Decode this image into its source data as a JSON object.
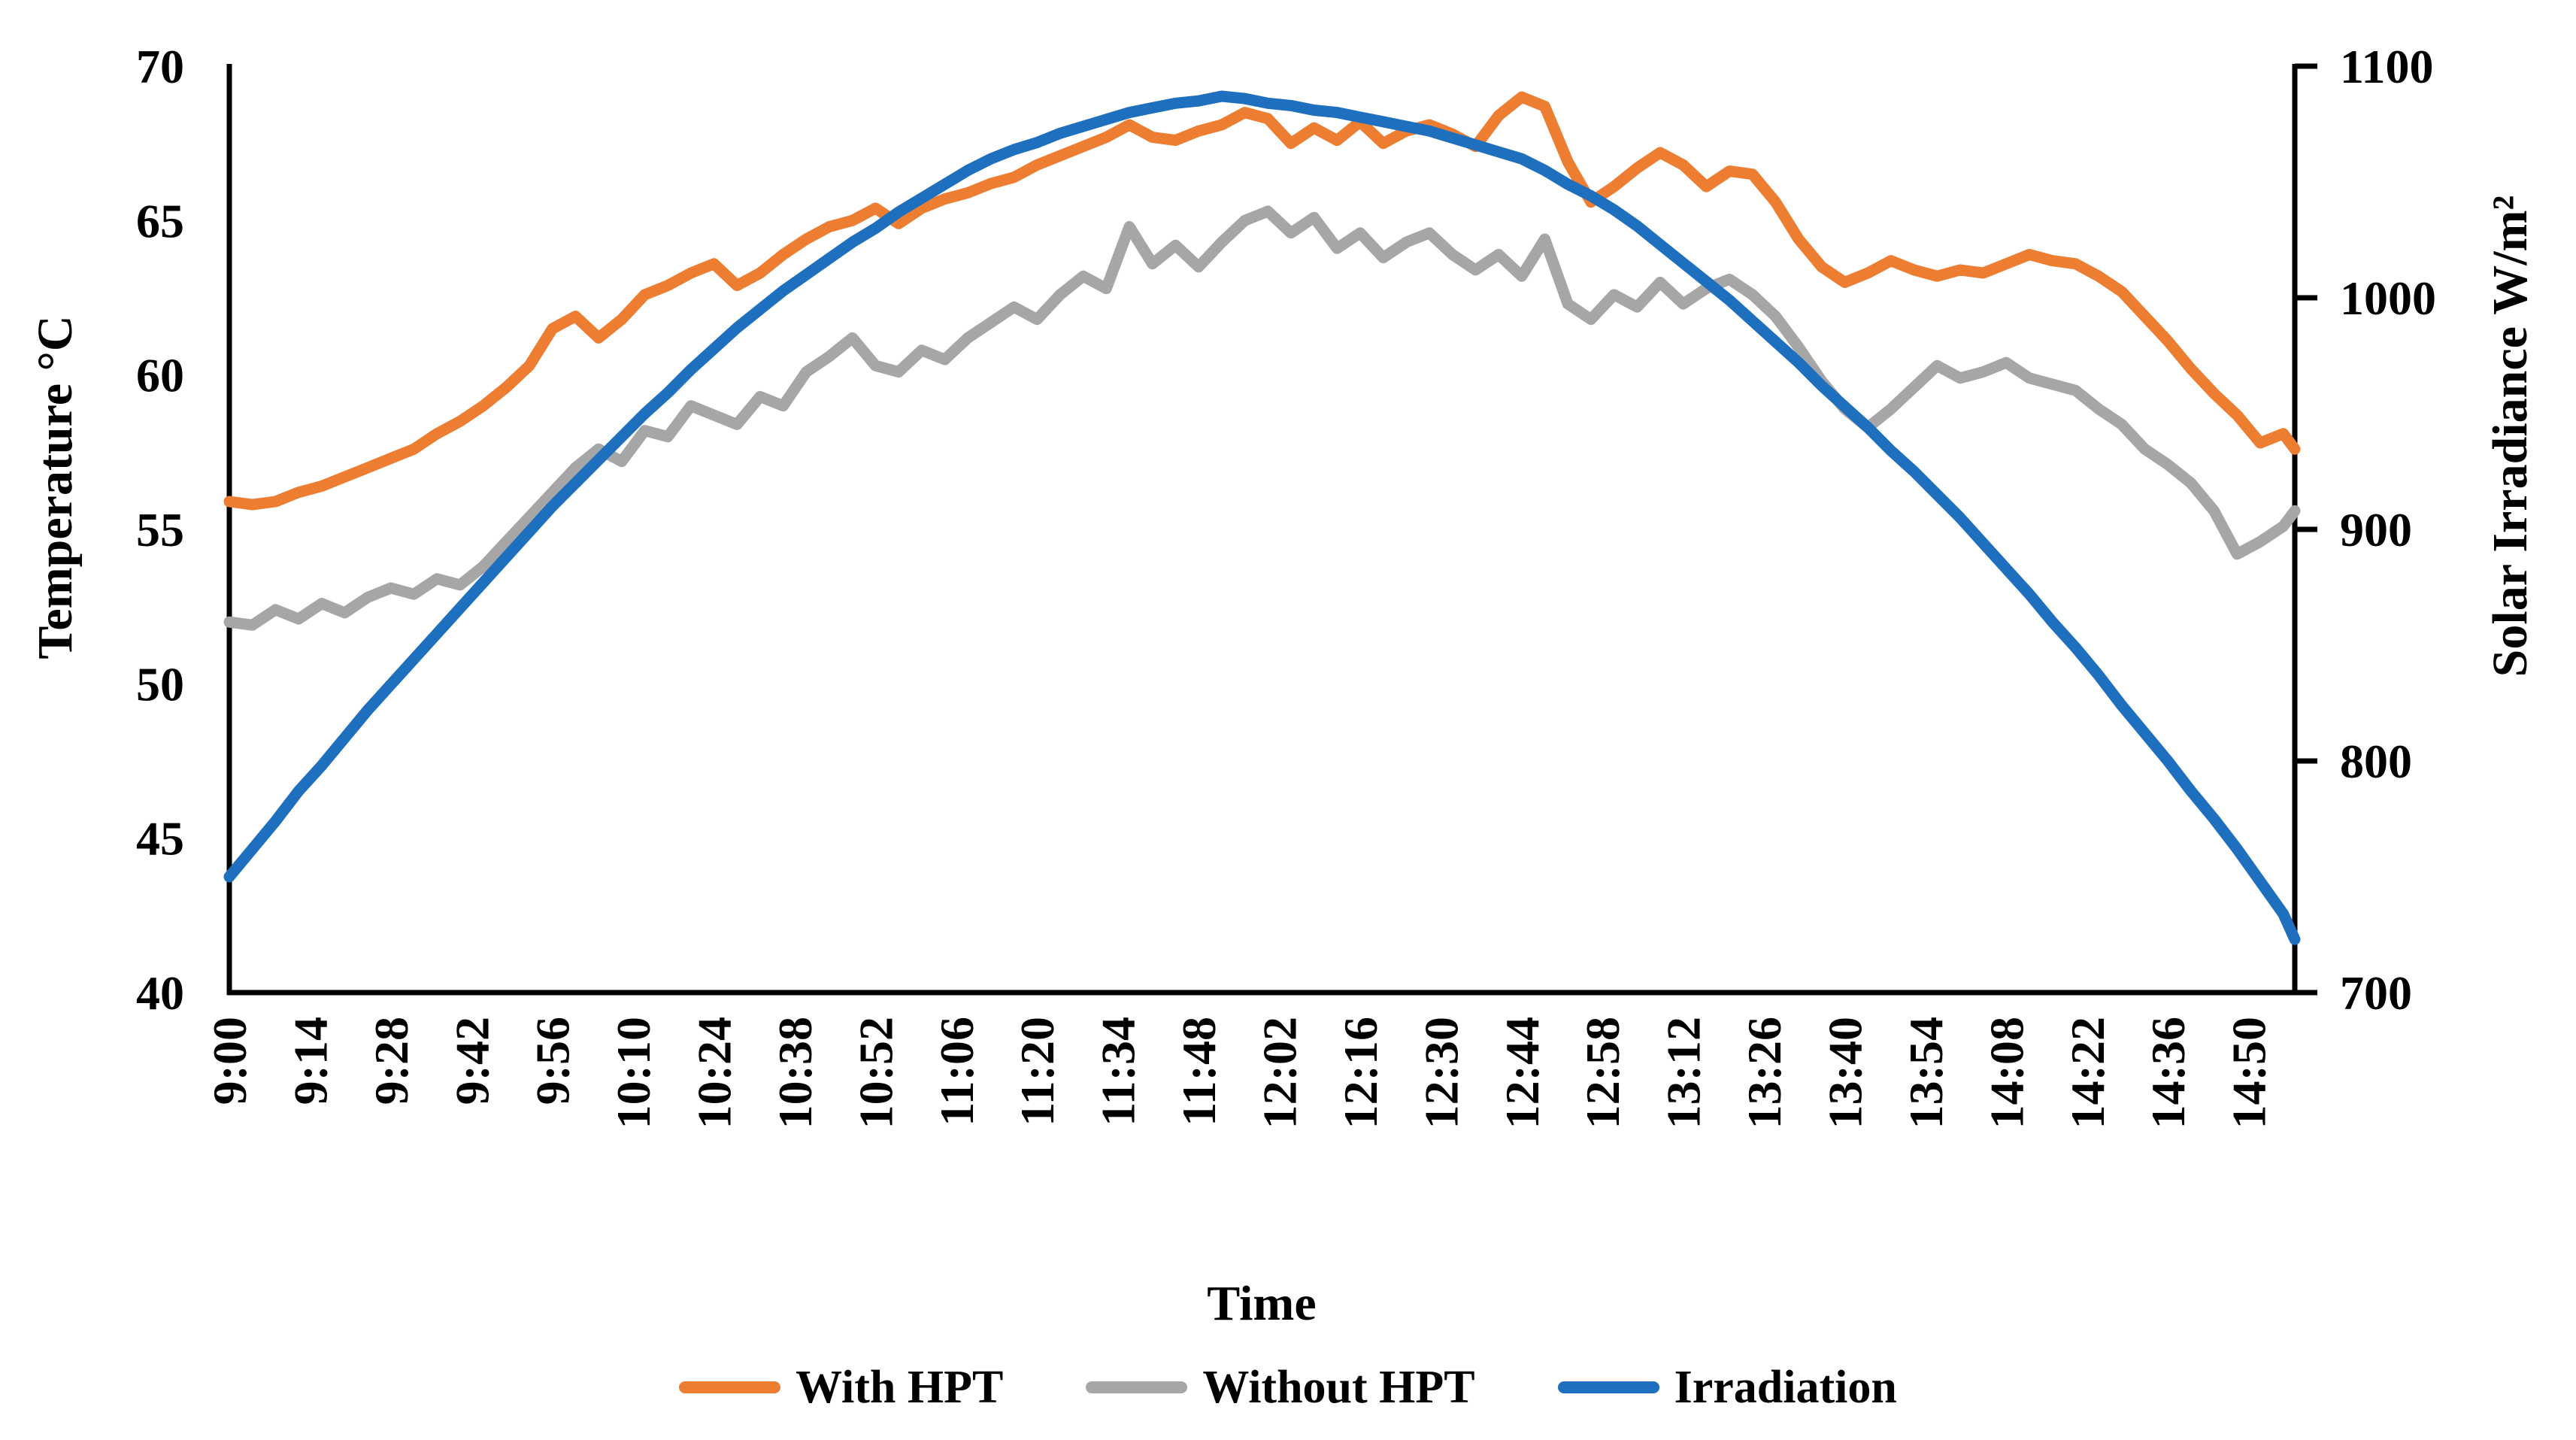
{
  "chart_data": {
    "type": "line",
    "title": "",
    "xlabel": "Time",
    "ylabel_left": "Temperature °C",
    "ylabel_right": "Solar Irradiance W/m²",
    "grid": false,
    "legend_position": "bottom",
    "y_left_range": [
      40,
      70
    ],
    "y_left_ticks": [
      70,
      65,
      60,
      55,
      50,
      45,
      40
    ],
    "y_right_range": [
      700,
      1100
    ],
    "y_right_ticks": [
      1100,
      1000,
      900,
      800,
      700
    ],
    "x_range_minutes": [
      0,
      358
    ],
    "x_tick_interval_minutes": 14,
    "x_tick_labels": [
      "9:00",
      "9:14",
      "9:28",
      "9:42",
      "9:56",
      "10:10",
      "10:24",
      "10:38",
      "10:52",
      "11:06",
      "11:20",
      "11:34",
      "11:48",
      "12:02",
      "12:16",
      "12:30",
      "12:44",
      "12:58",
      "13:12",
      "13:26",
      "13:40",
      "13:54",
      "14:08",
      "14:22",
      "14:36",
      "14:50"
    ],
    "minutes_after_900": [
      0,
      4,
      8,
      12,
      16,
      20,
      24,
      28,
      32,
      36,
      40,
      44,
      48,
      52,
      56,
      60,
      64,
      68,
      72,
      76,
      80,
      84,
      88,
      92,
      96,
      100,
      104,
      108,
      112,
      116,
      120,
      124,
      128,
      132,
      136,
      140,
      144,
      148,
      152,
      156,
      160,
      164,
      168,
      172,
      176,
      180,
      184,
      188,
      192,
      196,
      200,
      204,
      208,
      212,
      216,
      220,
      224,
      228,
      232,
      236,
      240,
      244,
      248,
      252,
      256,
      260,
      264,
      268,
      272,
      276,
      280,
      284,
      288,
      292,
      296,
      300,
      304,
      308,
      312,
      316,
      320,
      324,
      328,
      332,
      336,
      340,
      344,
      348,
      352,
      356,
      358
    ],
    "series": [
      {
        "name": "With HPT",
        "axis": "left",
        "unit": "°C",
        "color": "#ED7D31",
        "values": [
          55.9,
          55.8,
          55.9,
          56.2,
          56.4,
          56.7,
          57.0,
          57.3,
          57.6,
          58.1,
          58.5,
          59.0,
          59.6,
          60.3,
          61.5,
          61.9,
          61.2,
          61.8,
          62.6,
          62.9,
          63.3,
          63.6,
          62.9,
          63.3,
          63.9,
          64.4,
          64.8,
          65.0,
          65.4,
          64.9,
          65.4,
          65.7,
          65.9,
          66.2,
          66.4,
          66.8,
          67.1,
          67.4,
          67.7,
          68.1,
          67.7,
          67.6,
          67.9,
          68.1,
          68.5,
          68.3,
          67.5,
          68.0,
          67.6,
          68.2,
          67.5,
          67.9,
          68.1,
          67.8,
          67.4,
          68.4,
          69.0,
          68.7,
          66.9,
          65.6,
          66.1,
          66.7,
          67.2,
          66.8,
          66.1,
          66.6,
          66.5,
          65.6,
          64.4,
          63.5,
          63.0,
          63.3,
          63.7,
          63.4,
          63.2,
          63.4,
          63.3,
          63.6,
          63.9,
          63.7,
          63.6,
          63.2,
          62.7,
          61.9,
          61.1,
          60.2,
          59.4,
          58.7,
          57.8,
          58.1,
          57.6
        ]
      },
      {
        "name": "Without HPT",
        "axis": "left",
        "unit": "°C",
        "color": "#A6A6A6",
        "values": [
          52.0,
          51.9,
          52.4,
          52.1,
          52.6,
          52.3,
          52.8,
          53.1,
          52.9,
          53.4,
          53.2,
          53.8,
          54.6,
          55.4,
          56.2,
          57.0,
          57.6,
          57.2,
          58.2,
          58.0,
          59.0,
          58.7,
          58.4,
          59.3,
          59.0,
          60.1,
          60.6,
          61.2,
          60.3,
          60.1,
          60.8,
          60.5,
          61.2,
          61.7,
          62.2,
          61.8,
          62.6,
          63.2,
          62.8,
          64.8,
          63.6,
          64.2,
          63.5,
          64.3,
          65.0,
          65.3,
          64.6,
          65.1,
          64.1,
          64.6,
          63.8,
          64.3,
          64.6,
          63.9,
          63.4,
          63.9,
          63.2,
          64.4,
          62.3,
          61.8,
          62.6,
          62.2,
          63.0,
          62.3,
          62.8,
          63.1,
          62.6,
          61.9,
          60.9,
          59.8,
          58.9,
          58.3,
          58.9,
          59.6,
          60.3,
          59.9,
          60.1,
          60.4,
          59.9,
          59.7,
          59.5,
          58.9,
          58.4,
          57.6,
          57.1,
          56.5,
          55.6,
          54.2,
          54.6,
          55.1,
          55.6
        ]
      },
      {
        "name": "Irradiation",
        "axis": "right",
        "unit": "W/m²",
        "color": "#1E6FBE",
        "values": [
          750,
          762,
          774,
          787,
          798,
          810,
          822,
          833,
          844,
          855,
          866,
          877,
          888,
          899,
          910,
          920,
          930,
          940,
          950,
          959,
          969,
          978,
          987,
          995,
          1003,
          1010,
          1017,
          1024,
          1030,
          1037,
          1043,
          1049,
          1055,
          1060,
          1064,
          1067,
          1071,
          1074,
          1077,
          1080,
          1082,
          1084,
          1085,
          1087,
          1086,
          1084,
          1083,
          1081,
          1080,
          1078,
          1076,
          1074,
          1072,
          1069,
          1066,
          1063,
          1060,
          1055,
          1049,
          1044,
          1038,
          1031,
          1023,
          1015,
          1007,
          999,
          990,
          981,
          972,
          962,
          953,
          944,
          934,
          925,
          915,
          905,
          894,
          883,
          872,
          860,
          849,
          837,
          824,
          812,
          800,
          787,
          775,
          762,
          748,
          734,
          723
        ]
      }
    ],
    "axis_color": "#000000"
  }
}
